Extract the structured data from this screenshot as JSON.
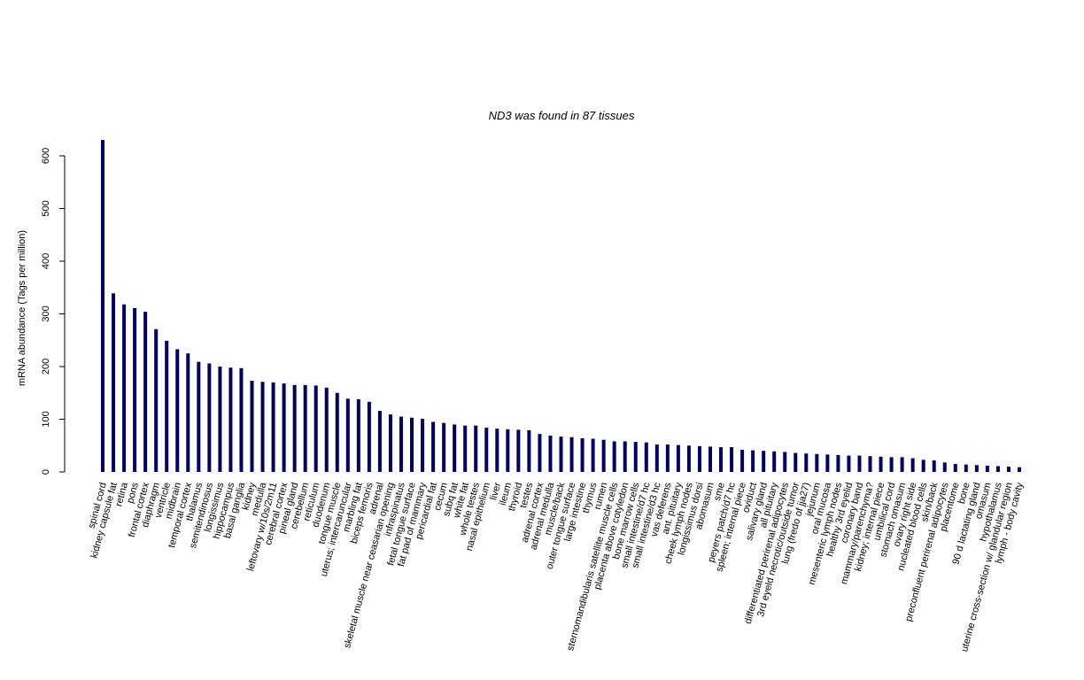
{
  "chart_data": {
    "type": "bar",
    "title": "ND3  was found in  87  tissues",
    "y_label": "mRNA abundance (Tags per million)",
    "color": "#000066",
    "ylim": [
      0,
      600
    ],
    "yticks": [
      0,
      100,
      200,
      300,
      400,
      500,
      600
    ],
    "categories": [
      "spinal cord",
      "kidney capsule fat",
      "retina",
      "pons",
      "frontal cortex",
      "diaphragm",
      "ventricle",
      "midbrain",
      "temporal cortex",
      "thalamus",
      "semitendinosus",
      "longissimus",
      "hippocampus",
      "basal ganglia",
      "kidney",
      "medulla",
      "leftovary w/10s/2m11",
      "cerebral cortex",
      "pineal gland",
      "cerebellum",
      "reticulum",
      "duodenum",
      "tongue muscle",
      "uterus; intercaruncular",
      "marbling fat",
      "biceps femoris",
      "adrenal",
      "skeletal muscle near ceasarian opening",
      "infraspinatus",
      "fetal tongue surface",
      "fat pad of mammary",
      "pericardial fat",
      "cecum",
      "subq fat",
      "white fat",
      "whole testes",
      "nasal epithelium",
      "liver",
      "ileum",
      "thyroid",
      "testes",
      "adrenal cortex",
      "adrenal medulla",
      "muscle/back",
      "outer tongue surface",
      "large intestine",
      "thymus",
      "rumen",
      "sternomandibularis satellite muscle cells",
      "placenta above cotyledon",
      "bone marrow cells",
      "small intestine/d7 hc",
      "small intestine/d3 hc",
      "vas deferens",
      "ant. pituitary",
      "cheek lymph nodes",
      "longissimus dorsi",
      "abomasum",
      "sme",
      "peyers patch/d7 hc",
      "spleen; internal piece",
      "oviduct",
      "salivary gland",
      "all pituitary",
      "differentiated perirenal adipocytes",
      "3rd eyeld necrotic/outside tumor",
      "lung (fredo of jja27)",
      "jejunum",
      "oral mucosa",
      "mesenteric lymph nodes",
      "healthy 3rd eyelid",
      "coronary band",
      "mammary/parenchyma?",
      "kidney; internal piece",
      "umbilical cord",
      "stomach omasum",
      "ovary right side",
      "nucleated blood cells",
      "skin/back",
      "preconfluent perirenal adipocytes",
      "placentome",
      "bone",
      "90 d lactating gland",
      "omasum",
      "hypothalamus",
      "uterine cross-section w/ glandular region",
      "lymph - body cavity"
    ],
    "values": [
      630,
      339,
      318,
      311,
      304,
      271,
      249,
      233,
      225,
      209,
      206,
      200,
      198,
      197,
      173,
      171,
      170,
      168,
      165,
      165,
      164,
      160,
      150,
      139,
      138,
      133,
      116,
      109,
      105,
      103,
      101,
      95,
      93,
      90,
      88,
      88,
      84,
      82,
      81,
      80,
      79,
      72,
      69,
      67,
      66,
      64,
      63,
      61,
      58,
      58,
      57,
      56,
      52,
      52,
      51,
      50,
      49,
      48,
      47,
      47,
      42,
      41,
      40,
      39,
      38,
      36,
      35,
      34,
      33,
      32,
      31,
      31,
      30,
      29,
      28,
      28,
      26,
      23,
      22,
      18,
      15,
      14,
      13,
      12,
      11,
      10,
      9
    ]
  }
}
